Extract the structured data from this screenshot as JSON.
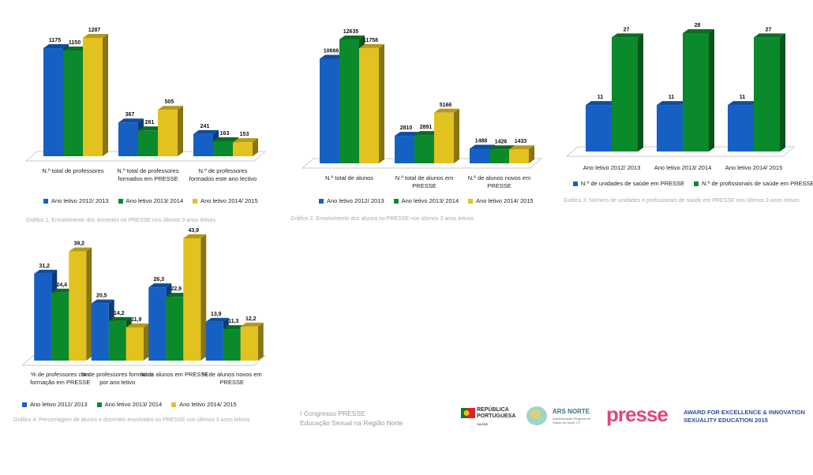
{
  "chart_data": [
    {
      "type": "bar3d",
      "categories": [
        "N.º total de professores",
        "N.º total de professores formados em PRESSE",
        "N.º de professores formados  este ano lectivo"
      ],
      "series": [
        {
          "name": "Ano letivo 2012/ 2013",
          "color": "#1660c4",
          "values": [
            1175,
            367,
            241
          ]
        },
        {
          "name": "Ano letivo 2013/ 2014",
          "color": "#0b8a2c",
          "values": [
            1150,
            281,
            163
          ]
        },
        {
          "name": "Ano letivo 2014/ 2015",
          "color": "#e2c21e",
          "values": [
            1287,
            505,
            153
          ]
        }
      ],
      "caption": "Gráfico 1. Envolvimento dos docentes no PRESSE nos últimos  3 anos letivos"
    },
    {
      "type": "bar3d",
      "categories": [
        "N.º total de alunos",
        "N.º total de alunos em PRESSE",
        "N.º de alunos novos em PRESSE"
      ],
      "series": [
        {
          "name": "Ano letivo 2012/ 2013",
          "color": "#1660c4",
          "values": [
            10666,
            2810,
            1488
          ]
        },
        {
          "name": "Ano letivo 2013/ 2014",
          "color": "#0b8a2c",
          "values": [
            12635,
            2891,
            1426
          ]
        },
        {
          "name": "Ano letivo 2014/ 2015",
          "color": "#e2c21e",
          "values": [
            11758,
            5166,
            1433
          ]
        }
      ],
      "caption": "Gráfico 2. Envolvimento dos alunos no  PRESSE nos últimos 3 anos letivos"
    },
    {
      "type": "bar3d",
      "categories": [
        "Ano letivo 2012/ 2013",
        "Ano letivo 2013/ 2014",
        "Ano letivo 2014/ 2015"
      ],
      "series": [
        {
          "name": "N.º de unidades de saúde em PRESSE",
          "color": "#1660c4",
          "values": [
            11,
            11,
            11
          ]
        },
        {
          "name": "N.º de profissionais de saúde em PRESSE",
          "color": "#0b8a2c",
          "values": [
            27,
            28,
            27
          ]
        }
      ],
      "caption": "Gráfico 3. Número de unidades e profissionais de saúde em PRESSE nos últimos 3 anos letivos"
    },
    {
      "type": "bar3d",
      "categories": [
        "%  de professores com formação em PRESSE",
        "% de professores formados por ano letivo",
        "% de alunos em PRESSE",
        "% de alunos novos em PRESSE"
      ],
      "series": [
        {
          "name": "Ano letivo 2012/ 2013",
          "color": "#1660c4",
          "values": [
            31.2,
            20.5,
            26.3,
            13.9
          ],
          "value_labels": [
            "31,2",
            "20,5",
            "26,3",
            "13,9"
          ]
        },
        {
          "name": "Ano letivo 2013/ 2014",
          "color": "#0b8a2c",
          "values": [
            24.4,
            14.2,
            22.9,
            11.3
          ],
          "value_labels": [
            "24,4",
            "14,2",
            "22,9",
            "11,3"
          ]
        },
        {
          "name": "Ano letivo 2014/ 2015",
          "color": "#e2c21e",
          "values": [
            39.2,
            11.9,
            43.9,
            12.2
          ],
          "value_labels": [
            "39,2",
            "11,9",
            "43,9",
            "12,2"
          ]
        }
      ],
      "caption": "Gráfico 4. Percentagem de alunos e docentes envolvidos no PRESSE nos últimos 3 anos letivos"
    }
  ],
  "footer": {
    "line1": "I Congresso PRESSE",
    "line2": "Educação Sexual na Região Norte"
  },
  "logos": {
    "republica": "REPÚBLICA PORTUGUESA",
    "saude": "SAÚDE",
    "ars": "ARS NORTE",
    "ars_sub": "Administração Regional de Saúde do Norte, I.P.",
    "presse": "presse",
    "award1": "AWARD FOR EXCELLENCE & INNOVATION",
    "award2": "SEXUALITY EDUCATION 2015"
  }
}
